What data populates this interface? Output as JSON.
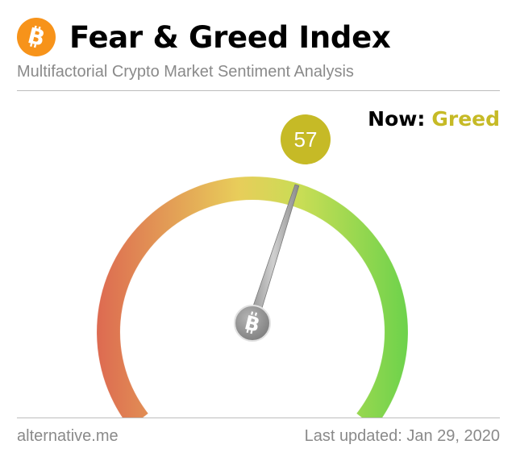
{
  "header": {
    "title": "Fear & Greed Index",
    "subtitle": "Multifactorial Crypto Market Sentiment Analysis",
    "logo_icon": "bitcoin-icon"
  },
  "status": {
    "now_label": "Now:",
    "classification": "Greed",
    "classification_color": "#c6ba26"
  },
  "gauge": {
    "value": 57,
    "value_text": "57",
    "min": 0,
    "max": 100,
    "badge_color": "#c6ba26",
    "hub_icon": "bitcoin-icon",
    "arc_colors": [
      "#dd6a51",
      "#e8cd5a",
      "#c8dd55",
      "#6ad24b"
    ]
  },
  "footer": {
    "source": "alternative.me",
    "last_updated": "Last updated: Jan 29, 2020"
  }
}
